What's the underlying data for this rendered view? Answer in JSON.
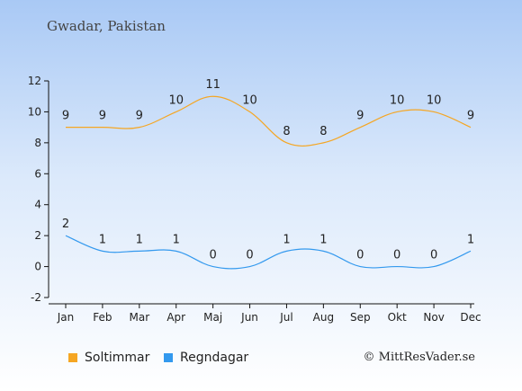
{
  "title": "Gwadar, Pakistan",
  "copyright": "© MittResVader.se",
  "colors": {
    "sun": "#f5a623",
    "rain": "#3399ee"
  },
  "chart_data": {
    "type": "line",
    "title": "Gwadar, Pakistan",
    "categories": [
      "Jan",
      "Feb",
      "Mar",
      "Apr",
      "Maj",
      "Jun",
      "Jul",
      "Aug",
      "Sep",
      "Okt",
      "Nov",
      "Dec"
    ],
    "series": [
      {
        "name": "Soltimmar",
        "color": "#f5a623",
        "values": [
          9,
          9,
          9,
          10,
          11,
          10,
          8,
          8,
          9,
          10,
          10,
          9
        ]
      },
      {
        "name": "Regndagar",
        "color": "#3399ee",
        "values": [
          2,
          1,
          1,
          1,
          0,
          0,
          1,
          1,
          0,
          0,
          0,
          1
        ]
      }
    ],
    "yticks": [
      -2,
      0,
      2,
      4,
      6,
      8,
      10,
      12
    ],
    "ylim": [
      -2,
      12
    ],
    "grid": false,
    "legend": "bottom-left"
  }
}
